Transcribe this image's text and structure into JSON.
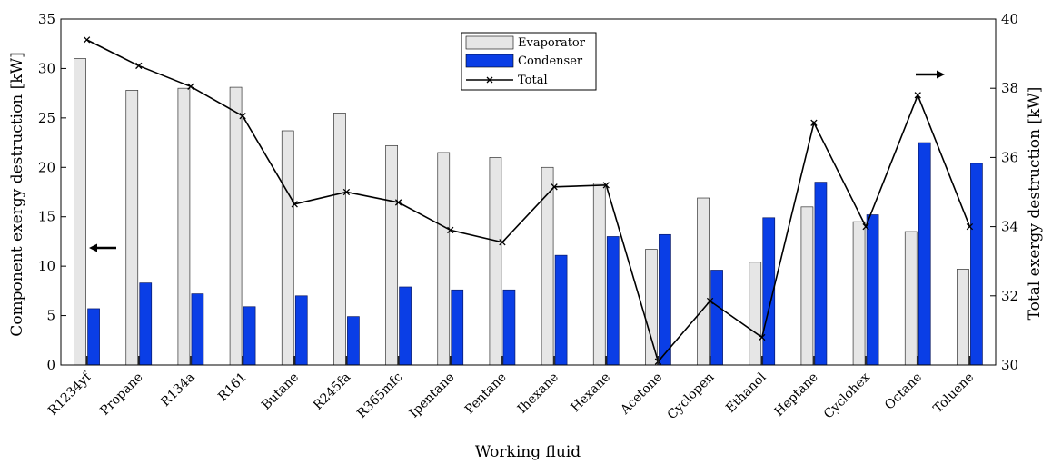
{
  "chart_data": {
    "type": "bar",
    "xlabel": "Working fluid",
    "ylabel": "Component exergy destruction [kW]",
    "y2label": "Total exergy destruction [kW]",
    "ylim": [
      0,
      35
    ],
    "y2lim": [
      30,
      40
    ],
    "yticks": [
      0,
      5,
      10,
      15,
      20,
      25,
      30,
      35
    ],
    "y2ticks": [
      30,
      32,
      34,
      36,
      38,
      40
    ],
    "grid": false,
    "legend_position": "top-center",
    "categories": [
      "R1234yf",
      "Propane",
      "R134a",
      "R161",
      "Butane",
      "R245fa",
      "R365mfc",
      "Ipentane",
      "Pentane",
      "Ihexane",
      "Hexane",
      "Acetone",
      "Cyclopen",
      "Ethanol",
      "Heptane",
      "Cyclohex",
      "Octane",
      "Toluene"
    ],
    "series": [
      {
        "name": "Evaporator",
        "type": "bar",
        "axis": "left",
        "color": "#e6e6e6",
        "values": [
          31.0,
          27.8,
          28.0,
          28.1,
          23.7,
          25.5,
          22.2,
          21.5,
          21.0,
          20.0,
          18.4,
          11.7,
          16.9,
          10.4,
          16.0,
          14.5,
          13.5,
          9.7
        ]
      },
      {
        "name": "Condenser",
        "type": "bar",
        "axis": "left",
        "color": "#0a3ee6",
        "values": [
          5.7,
          8.3,
          7.2,
          5.9,
          7.0,
          4.9,
          7.9,
          7.6,
          7.6,
          11.1,
          13.0,
          13.2,
          9.6,
          14.9,
          18.5,
          15.2,
          22.5,
          20.4
        ]
      },
      {
        "name": "Total",
        "type": "line",
        "axis": "right",
        "color": "#000000",
        "values": [
          39.4,
          38.65,
          38.05,
          37.2,
          34.65,
          35.0,
          34.7,
          33.9,
          33.55,
          35.15,
          35.2,
          30.1,
          31.85,
          30.8,
          37.0,
          34.0,
          37.8,
          34.0
        ]
      }
    ]
  }
}
